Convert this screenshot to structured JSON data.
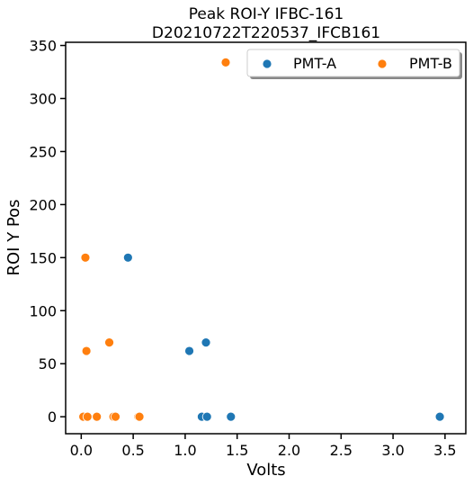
{
  "chart_data": {
    "type": "scatter",
    "title": [
      "Peak ROI-Y IFBC-161",
      "D20210722T220537_IFCB161"
    ],
    "xlabel": "Volts",
    "ylabel": "ROI Y Pos",
    "xlim": [
      -0.15,
      3.7
    ],
    "ylim": [
      -16,
      353
    ],
    "xticks": [
      0.0,
      0.5,
      1.0,
      1.5,
      2.0,
      2.5,
      3.0,
      3.5
    ],
    "xtick_labels": [
      "0.0",
      "0.5",
      "1.0",
      "1.5",
      "2.0",
      "2.5",
      "3.0",
      "3.5"
    ],
    "yticks": [
      0,
      50,
      100,
      150,
      200,
      250,
      300,
      350
    ],
    "ytick_labels": [
      "0",
      "50",
      "100",
      "150",
      "200",
      "250",
      "300",
      "350"
    ],
    "grid": false,
    "legend_position": "top-right",
    "series": [
      {
        "name": "PMT-A",
        "color": "#1f77b4",
        "points": [
          [
            0.45,
            150
          ],
          [
            1.04,
            62
          ],
          [
            1.2,
            70
          ],
          [
            1.16,
            0
          ],
          [
            1.21,
            0
          ],
          [
            1.44,
            0
          ],
          [
            3.45,
            0
          ],
          [
            0.03,
            0
          ],
          [
            0.33,
            0
          ],
          [
            0.55,
            0
          ]
        ]
      },
      {
        "name": "PMT-B",
        "color": "#ff7f0e",
        "points": [
          [
            1.39,
            334
          ],
          [
            0.04,
            150
          ],
          [
            0.27,
            70
          ],
          [
            0.05,
            62
          ],
          [
            0.02,
            0
          ],
          [
            0.06,
            0
          ],
          [
            0.15,
            0
          ],
          [
            0.31,
            0
          ],
          [
            0.33,
            0
          ],
          [
            0.55,
            0
          ],
          [
            0.56,
            0
          ]
        ]
      }
    ]
  }
}
